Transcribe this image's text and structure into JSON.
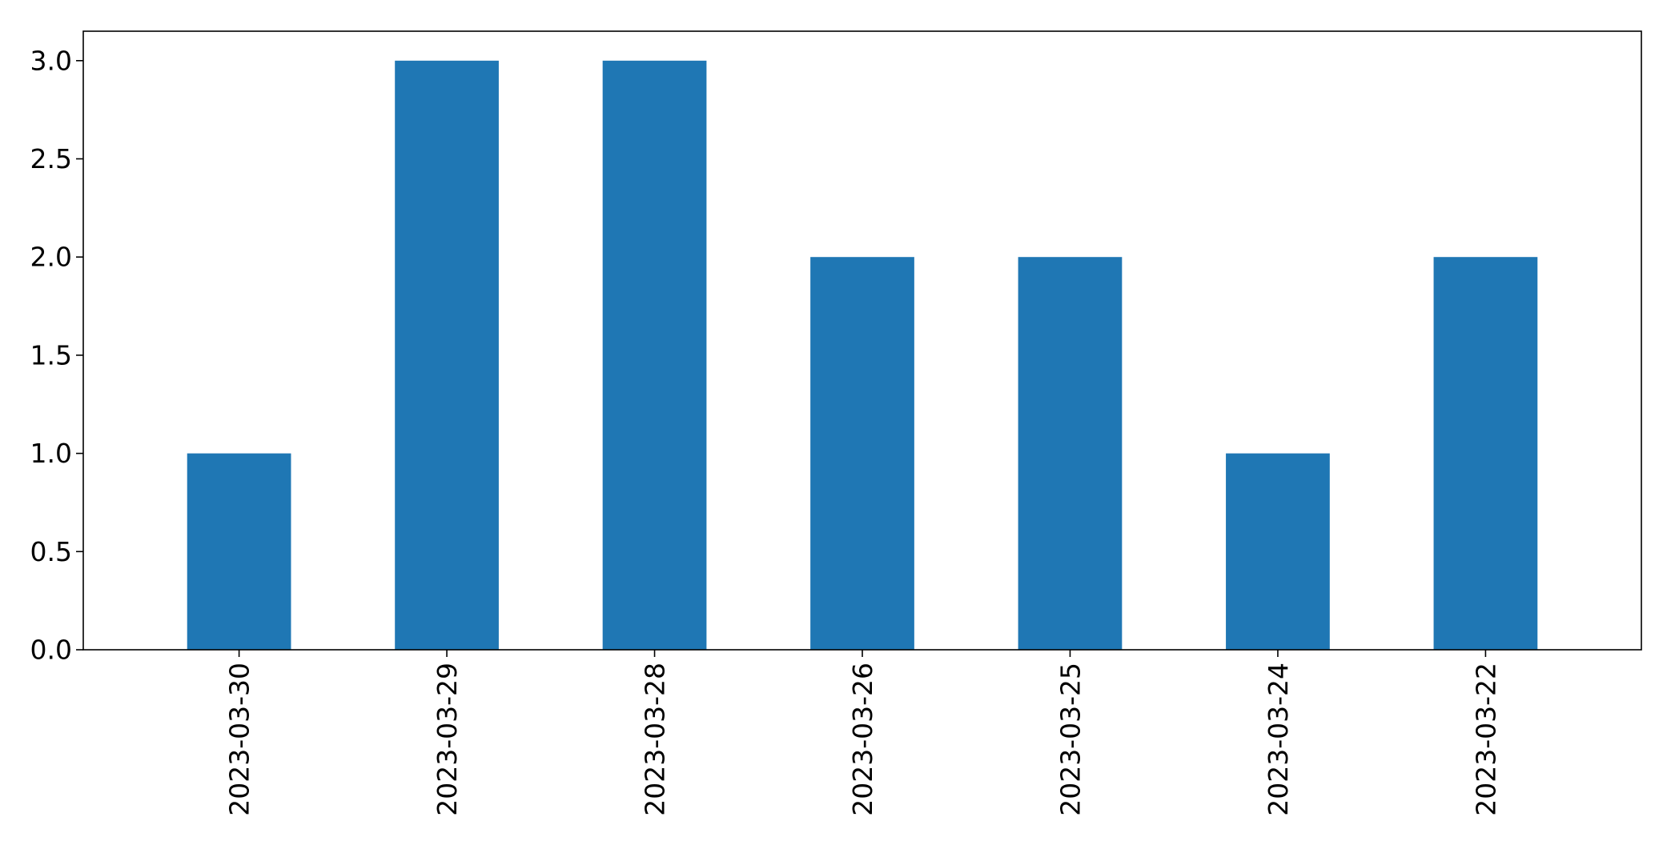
{
  "chart_data": {
    "type": "bar",
    "title": "",
    "xlabel": "",
    "ylabel": "",
    "categories": [
      "2023-03-30",
      "2023-03-29",
      "2023-03-28",
      "2023-03-26",
      "2023-03-25",
      "2023-03-24",
      "2023-03-22"
    ],
    "values": [
      1,
      3,
      3,
      2,
      2,
      1,
      2
    ],
    "ylim": [
      0,
      3.15
    ],
    "yticks": [
      0.0,
      0.5,
      1.0,
      1.5,
      2.0,
      2.5,
      3.0
    ],
    "ytick_labels": [
      "0.0",
      "0.5",
      "1.0",
      "1.5",
      "2.0",
      "2.5",
      "3.0"
    ],
    "grid": false,
    "legend": "none",
    "bar_color": "#1f77b4"
  }
}
